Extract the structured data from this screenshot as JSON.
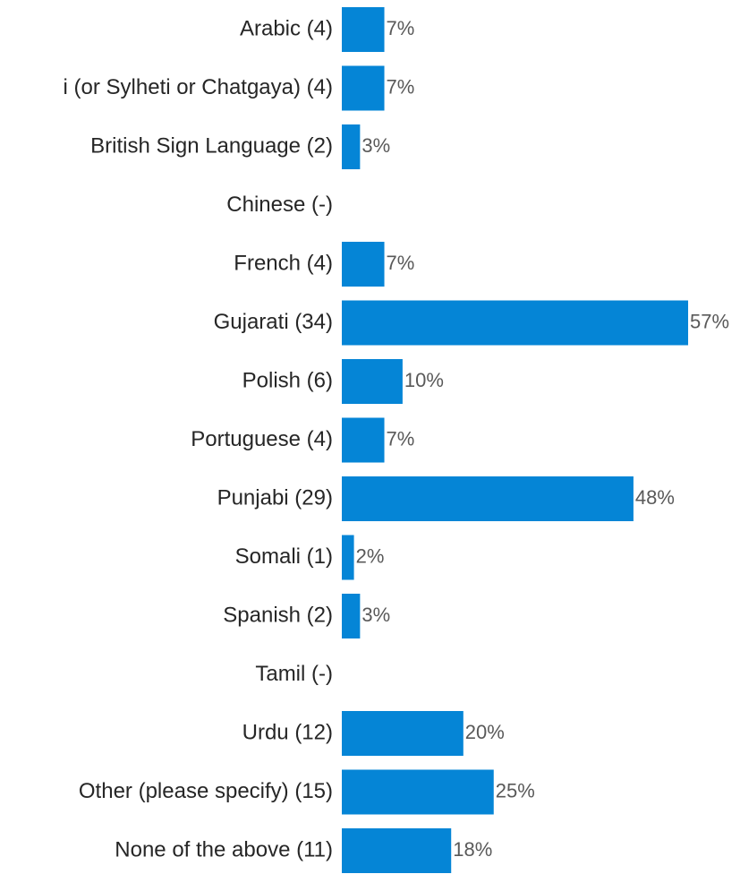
{
  "chart_data": {
    "type": "bar",
    "orientation": "horizontal",
    "color": "#0585d6",
    "categories": [
      "Arabic (4)",
      "i (or Sylheti or Chatgaya) (4)",
      "British Sign Language (2)",
      "Chinese (-)",
      "French (4)",
      "Gujarati (34)",
      "Polish (6)",
      "Portuguese (4)",
      "Punjabi (29)",
      "Somali (1)",
      "Spanish (2)",
      "Tamil (-)",
      "Urdu (12)",
      "Other (please specify) (15)",
      "None of the above (11)"
    ],
    "values": [
      7,
      7,
      3,
      null,
      7,
      57,
      10,
      7,
      48,
      2,
      3,
      null,
      20,
      25,
      18
    ],
    "value_labels": [
      "7%",
      "7%",
      "3%",
      null,
      "7%",
      "57%",
      "10%",
      "7%",
      "48%",
      "2%",
      "3%",
      null,
      "20%",
      "25%",
      "18%"
    ]
  }
}
